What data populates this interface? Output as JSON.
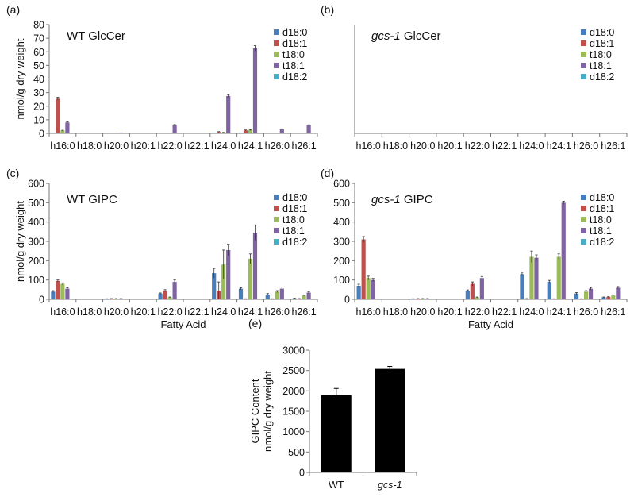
{
  "chart_data": [
    {
      "panel": "(a)",
      "type": "bar",
      "title_italic": "",
      "title_rest": "WT GlcCer",
      "ylabel": "nmol/g dry weight",
      "xlabel": "",
      "ylim": [
        0,
        80
      ],
      "yticks": [
        "0",
        "10",
        "20",
        "30",
        "40",
        "50",
        "60",
        "70",
        "80"
      ],
      "categories": [
        "h16:0",
        "h18:0",
        "h20:0",
        "h20:1",
        "h22:0",
        "h22:1",
        "h24:0",
        "h24:1",
        "h26:0",
        "h26:1"
      ],
      "series": [
        {
          "name": "d18:0",
          "color": "#4a7ebb",
          "values": [
            0.3,
            0,
            0,
            0,
            0,
            0,
            0.3,
            0.3,
            0,
            0
          ],
          "errors": [
            0,
            0,
            0,
            0,
            0,
            0,
            0,
            0,
            0,
            0
          ]
        },
        {
          "name": "d18:1",
          "color": "#c0504d",
          "values": [
            25.5,
            0,
            0,
            0,
            0,
            0,
            1.0,
            2.2,
            0,
            0
          ],
          "errors": [
            1.0,
            0,
            0,
            0,
            0,
            0,
            0.3,
            0.3,
            0,
            0
          ]
        },
        {
          "name": "t18:0",
          "color": "#9bbb59",
          "values": [
            2.0,
            0,
            0,
            0,
            0,
            0,
            0.5,
            2.5,
            0,
            0
          ],
          "errors": [
            0.3,
            0,
            0,
            0,
            0,
            0,
            0.2,
            0.3,
            0,
            0
          ]
        },
        {
          "name": "t18:1",
          "color": "#8064a2",
          "values": [
            8.0,
            0,
            0.2,
            0,
            6.0,
            0,
            27.5,
            62.5,
            3.0,
            6.0
          ],
          "errors": [
            0.5,
            0,
            0,
            0,
            0.5,
            0,
            1.0,
            2.0,
            0.3,
            0.3
          ]
        },
        {
          "name": "d18:2",
          "color": "#4bacc6",
          "values": [
            0,
            0,
            0,
            0,
            0,
            0,
            0,
            0,
            0,
            0
          ],
          "errors": [
            0,
            0,
            0,
            0,
            0,
            0,
            0,
            0,
            0,
            0
          ]
        }
      ]
    },
    {
      "panel": "(b)",
      "type": "bar",
      "title_italic": "gcs-1",
      "title_rest": " GlcCer",
      "ylabel": "",
      "xlabel": "",
      "ylim": [
        0,
        80
      ],
      "yticks": [],
      "categories": [
        "h16:0",
        "h18:0",
        "h20:0",
        "h20:1",
        "h22:0",
        "h22:1",
        "h24:0",
        "h24:1",
        "h26:0",
        "h26:1"
      ],
      "series": [
        {
          "name": "d18:0",
          "color": "#4a7ebb",
          "values": [
            0,
            0,
            0,
            0,
            0,
            0,
            0,
            0,
            0,
            0
          ],
          "errors": [
            0,
            0,
            0,
            0,
            0,
            0,
            0,
            0,
            0,
            0
          ]
        },
        {
          "name": "d18:1",
          "color": "#c0504d",
          "values": [
            0,
            0,
            0,
            0,
            0,
            0,
            0,
            0,
            0,
            0
          ],
          "errors": [
            0,
            0,
            0,
            0,
            0,
            0,
            0,
            0,
            0,
            0
          ]
        },
        {
          "name": "t18:0",
          "color": "#9bbb59",
          "values": [
            0,
            0,
            0,
            0,
            0,
            0,
            0,
            0,
            0,
            0
          ],
          "errors": [
            0,
            0,
            0,
            0,
            0,
            0,
            0,
            0,
            0,
            0
          ]
        },
        {
          "name": "t18:1",
          "color": "#8064a2",
          "values": [
            0,
            0,
            0,
            0,
            0,
            0,
            0,
            0,
            0,
            0
          ],
          "errors": [
            0,
            0,
            0,
            0,
            0,
            0,
            0,
            0,
            0,
            0
          ]
        },
        {
          "name": "d18:2",
          "color": "#4bacc6",
          "values": [
            0,
            0,
            0,
            0,
            0,
            0,
            0,
            0,
            0,
            0
          ],
          "errors": [
            0,
            0,
            0,
            0,
            0,
            0,
            0,
            0,
            0,
            0
          ]
        }
      ]
    },
    {
      "panel": "(c)",
      "type": "bar",
      "title_italic": "",
      "title_rest": "WT GIPC",
      "ylabel": "nmol/g dry weight",
      "xlabel": "Fatty Acid",
      "ylim": [
        0,
        600
      ],
      "yticks": [
        "0",
        "100",
        "200",
        "300",
        "400",
        "500",
        "600"
      ],
      "categories": [
        "h16:0",
        "h18:0",
        "h20:0",
        "h20:1",
        "h22:0",
        "h22:1",
        "h24:0",
        "h24:1",
        "h26:0",
        "h26:1"
      ],
      "series": [
        {
          "name": "d18:0",
          "color": "#4a7ebb",
          "values": [
            40,
            0,
            2,
            0,
            30,
            0,
            135,
            55,
            25,
            5
          ],
          "errors": [
            5,
            0,
            1,
            0,
            3,
            0,
            25,
            5,
            5,
            1
          ]
        },
        {
          "name": "d18:1",
          "color": "#c0504d",
          "values": [
            95,
            0,
            3,
            0,
            45,
            0,
            45,
            2,
            2,
            3
          ],
          "errors": [
            5,
            0,
            1,
            0,
            5,
            0,
            45,
            1,
            1,
            1
          ]
        },
        {
          "name": "t18:0",
          "color": "#9bbb59",
          "values": [
            80,
            0,
            3,
            0,
            10,
            0,
            180,
            210,
            40,
            20
          ],
          "errors": [
            5,
            0,
            1,
            0,
            2,
            0,
            75,
            25,
            5,
            3
          ]
        },
        {
          "name": "t18:1",
          "color": "#8064a2",
          "values": [
            55,
            0,
            3,
            0,
            90,
            0,
            255,
            345,
            55,
            35
          ],
          "errors": [
            5,
            0,
            1,
            0,
            10,
            0,
            30,
            40,
            8,
            5
          ]
        },
        {
          "name": "d18:2",
          "color": "#4bacc6",
          "values": [
            0,
            0,
            0,
            0,
            0,
            0,
            0,
            0,
            0,
            0
          ],
          "errors": [
            0,
            0,
            0,
            0,
            0,
            0,
            0,
            0,
            0,
            0
          ]
        }
      ]
    },
    {
      "panel": "(d)",
      "type": "bar",
      "title_italic": "gcs-1",
      "title_rest": " GIPC",
      "ylabel": "",
      "xlabel": "Fatty Acid",
      "ylim": [
        0,
        600
      ],
      "yticks": [
        "0",
        "100",
        "200",
        "300",
        "400",
        "500",
        "600"
      ],
      "categories": [
        "h16:0",
        "h18:0",
        "h20:0",
        "h20:1",
        "h22:0",
        "h22:1",
        "h24:0",
        "h24:1",
        "h26:0",
        "h26:1"
      ],
      "series": [
        {
          "name": "d18:0",
          "color": "#4a7ebb",
          "values": [
            70,
            0,
            2,
            0,
            45,
            0,
            130,
            90,
            30,
            10
          ],
          "errors": [
            8,
            0,
            1,
            0,
            4,
            0,
            10,
            8,
            5,
            2
          ]
        },
        {
          "name": "d18:1",
          "color": "#c0504d",
          "values": [
            310,
            0,
            3,
            0,
            80,
            0,
            3,
            2,
            2,
            12
          ],
          "errors": [
            15,
            0,
            1,
            0,
            10,
            0,
            1,
            1,
            1,
            2
          ]
        },
        {
          "name": "t18:0",
          "color": "#9bbb59",
          "values": [
            110,
            0,
            3,
            0,
            10,
            0,
            220,
            220,
            40,
            20
          ],
          "errors": [
            10,
            0,
            1,
            0,
            2,
            0,
            30,
            15,
            5,
            3
          ]
        },
        {
          "name": "t18:1",
          "color": "#8064a2",
          "values": [
            100,
            0,
            3,
            0,
            110,
            0,
            215,
            500,
            55,
            60
          ],
          "errors": [
            8,
            0,
            1,
            0,
            8,
            0,
            15,
            8,
            6,
            6
          ]
        },
        {
          "name": "d18:2",
          "color": "#4bacc6",
          "values": [
            0,
            0,
            0,
            0,
            0,
            0,
            0,
            0,
            0,
            0
          ],
          "errors": [
            0,
            0,
            0,
            0,
            0,
            0,
            0,
            0,
            0,
            0
          ]
        }
      ]
    },
    {
      "panel": "(e)",
      "type": "bar",
      "ylabel_line1": "GIPC Content",
      "ylabel_line2": "nmol/g dry weight",
      "ylim": [
        0,
        3000
      ],
      "yticks": [
        "0",
        "500",
        "1000",
        "1500",
        "2000",
        "2500",
        "3000"
      ],
      "categories": [
        "WT",
        "gcs-1"
      ],
      "categories_italic": [
        false,
        true
      ],
      "values": [
        1890,
        2540
      ],
      "errors": [
        170,
        60
      ],
      "color": "#000000"
    }
  ]
}
